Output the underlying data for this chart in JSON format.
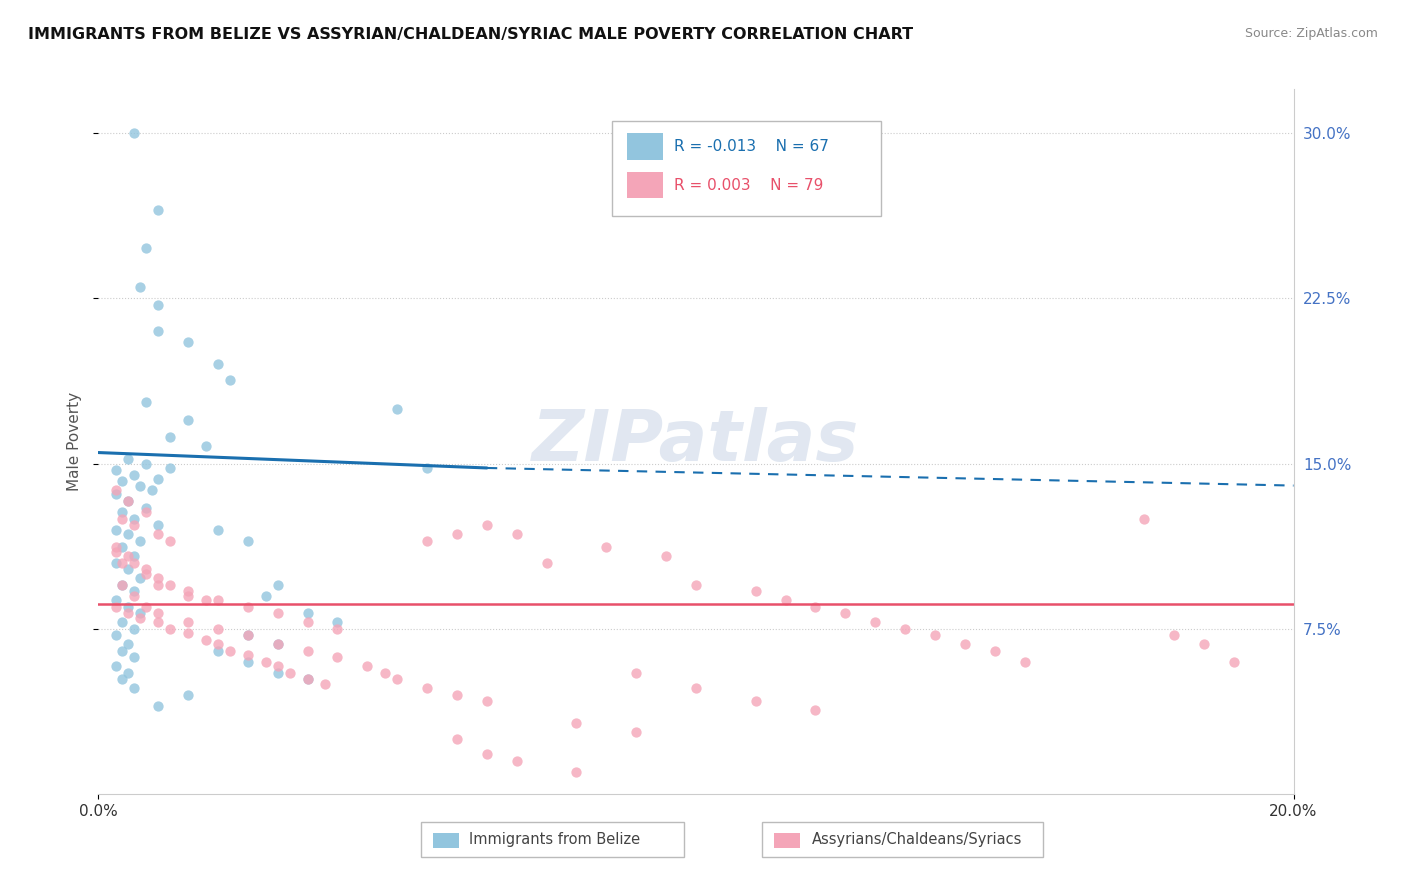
{
  "title": "IMMIGRANTS FROM BELIZE VS ASSYRIAN/CHALDEAN/SYRIAC MALE POVERTY CORRELATION CHART",
  "source": "Source: ZipAtlas.com",
  "ylabel": "Male Poverty",
  "yticks": [
    "7.5%",
    "15.0%",
    "22.5%",
    "30.0%"
  ],
  "ytick_vals": [
    0.075,
    0.15,
    0.225,
    0.3
  ],
  "xlim": [
    0.0,
    0.2
  ],
  "ylim": [
    0.0,
    0.32
  ],
  "color_blue": "#92c5de",
  "color_pink": "#f4a5b8",
  "color_blue_line": "#1a6faf",
  "color_pink_line": "#e8506a",
  "watermark_text": "ZIPatlas",
  "blue_line_solid": [
    [
      0.0,
      0.155
    ],
    [
      0.065,
      0.148
    ]
  ],
  "blue_line_dashed": [
    [
      0.065,
      0.148
    ],
    [
      0.2,
      0.14
    ]
  ],
  "pink_line_solid": [
    [
      0.0,
      0.086
    ],
    [
      0.2,
      0.086
    ]
  ],
  "belize_scatter": [
    [
      0.006,
      0.3
    ],
    [
      0.01,
      0.265
    ],
    [
      0.008,
      0.248
    ],
    [
      0.007,
      0.23
    ],
    [
      0.01,
      0.222
    ],
    [
      0.01,
      0.21
    ],
    [
      0.015,
      0.205
    ],
    [
      0.02,
      0.195
    ],
    [
      0.022,
      0.188
    ],
    [
      0.008,
      0.178
    ],
    [
      0.015,
      0.17
    ],
    [
      0.012,
      0.162
    ],
    [
      0.018,
      0.158
    ],
    [
      0.005,
      0.152
    ],
    [
      0.008,
      0.15
    ],
    [
      0.012,
      0.148
    ],
    [
      0.003,
      0.147
    ],
    [
      0.006,
      0.145
    ],
    [
      0.01,
      0.143
    ],
    [
      0.004,
      0.142
    ],
    [
      0.007,
      0.14
    ],
    [
      0.009,
      0.138
    ],
    [
      0.003,
      0.136
    ],
    [
      0.005,
      0.133
    ],
    [
      0.008,
      0.13
    ],
    [
      0.004,
      0.128
    ],
    [
      0.006,
      0.125
    ],
    [
      0.01,
      0.122
    ],
    [
      0.003,
      0.12
    ],
    [
      0.005,
      0.118
    ],
    [
      0.007,
      0.115
    ],
    [
      0.004,
      0.112
    ],
    [
      0.006,
      0.108
    ],
    [
      0.003,
      0.105
    ],
    [
      0.005,
      0.102
    ],
    [
      0.007,
      0.098
    ],
    [
      0.004,
      0.095
    ],
    [
      0.006,
      0.092
    ],
    [
      0.003,
      0.088
    ],
    [
      0.005,
      0.085
    ],
    [
      0.007,
      0.082
    ],
    [
      0.004,
      0.078
    ],
    [
      0.006,
      0.075
    ],
    [
      0.003,
      0.072
    ],
    [
      0.005,
      0.068
    ],
    [
      0.004,
      0.065
    ],
    [
      0.006,
      0.062
    ],
    [
      0.003,
      0.058
    ],
    [
      0.005,
      0.055
    ],
    [
      0.004,
      0.052
    ],
    [
      0.006,
      0.048
    ],
    [
      0.02,
      0.12
    ],
    [
      0.025,
      0.115
    ],
    [
      0.03,
      0.095
    ],
    [
      0.028,
      0.09
    ],
    [
      0.035,
      0.082
    ],
    [
      0.04,
      0.078
    ],
    [
      0.025,
      0.072
    ],
    [
      0.03,
      0.068
    ],
    [
      0.02,
      0.065
    ],
    [
      0.025,
      0.06
    ],
    [
      0.03,
      0.055
    ],
    [
      0.035,
      0.052
    ],
    [
      0.05,
      0.175
    ],
    [
      0.055,
      0.148
    ],
    [
      0.015,
      0.045
    ],
    [
      0.01,
      0.04
    ]
  ],
  "assyrian_scatter": [
    [
      0.003,
      0.138
    ],
    [
      0.005,
      0.133
    ],
    [
      0.008,
      0.128
    ],
    [
      0.004,
      0.125
    ],
    [
      0.006,
      0.122
    ],
    [
      0.01,
      0.118
    ],
    [
      0.012,
      0.115
    ],
    [
      0.003,
      0.112
    ],
    [
      0.005,
      0.108
    ],
    [
      0.004,
      0.105
    ],
    [
      0.008,
      0.102
    ],
    [
      0.01,
      0.098
    ],
    [
      0.012,
      0.095
    ],
    [
      0.015,
      0.092
    ],
    [
      0.018,
      0.088
    ],
    [
      0.003,
      0.085
    ],
    [
      0.005,
      0.082
    ],
    [
      0.007,
      0.08
    ],
    [
      0.01,
      0.078
    ],
    [
      0.012,
      0.075
    ],
    [
      0.015,
      0.073
    ],
    [
      0.018,
      0.07
    ],
    [
      0.02,
      0.068
    ],
    [
      0.022,
      0.065
    ],
    [
      0.025,
      0.063
    ],
    [
      0.028,
      0.06
    ],
    [
      0.03,
      0.058
    ],
    [
      0.032,
      0.055
    ],
    [
      0.035,
      0.052
    ],
    [
      0.038,
      0.05
    ],
    [
      0.004,
      0.095
    ],
    [
      0.006,
      0.09
    ],
    [
      0.008,
      0.085
    ],
    [
      0.01,
      0.082
    ],
    [
      0.015,
      0.078
    ],
    [
      0.02,
      0.075
    ],
    [
      0.025,
      0.072
    ],
    [
      0.03,
      0.068
    ],
    [
      0.035,
      0.065
    ],
    [
      0.04,
      0.062
    ],
    [
      0.045,
      0.058
    ],
    [
      0.048,
      0.055
    ],
    [
      0.05,
      0.052
    ],
    [
      0.055,
      0.048
    ],
    [
      0.06,
      0.045
    ],
    [
      0.065,
      0.042
    ],
    [
      0.003,
      0.11
    ],
    [
      0.006,
      0.105
    ],
    [
      0.008,
      0.1
    ],
    [
      0.01,
      0.095
    ],
    [
      0.015,
      0.09
    ],
    [
      0.02,
      0.088
    ],
    [
      0.025,
      0.085
    ],
    [
      0.03,
      0.082
    ],
    [
      0.035,
      0.078
    ],
    [
      0.04,
      0.075
    ],
    [
      0.055,
      0.115
    ],
    [
      0.06,
      0.118
    ],
    [
      0.065,
      0.122
    ],
    [
      0.07,
      0.118
    ],
    [
      0.075,
      0.105
    ],
    [
      0.085,
      0.112
    ],
    [
      0.095,
      0.108
    ],
    [
      0.1,
      0.095
    ],
    [
      0.11,
      0.092
    ],
    [
      0.115,
      0.088
    ],
    [
      0.12,
      0.085
    ],
    [
      0.125,
      0.082
    ],
    [
      0.13,
      0.078
    ],
    [
      0.135,
      0.075
    ],
    [
      0.14,
      0.072
    ],
    [
      0.145,
      0.068
    ],
    [
      0.15,
      0.065
    ],
    [
      0.155,
      0.06
    ],
    [
      0.175,
      0.125
    ],
    [
      0.18,
      0.072
    ],
    [
      0.185,
      0.068
    ],
    [
      0.19,
      0.06
    ],
    [
      0.09,
      0.055
    ],
    [
      0.1,
      0.048
    ],
    [
      0.11,
      0.042
    ],
    [
      0.12,
      0.038
    ],
    [
      0.08,
      0.032
    ],
    [
      0.09,
      0.028
    ],
    [
      0.06,
      0.025
    ],
    [
      0.065,
      0.018
    ],
    [
      0.07,
      0.015
    ],
    [
      0.08,
      0.01
    ]
  ]
}
